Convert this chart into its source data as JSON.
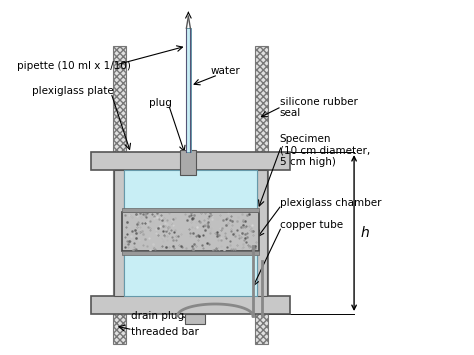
{
  "bg_color": "#ffffff",
  "light_blue": "#c8eef5",
  "plate_gray": "#c8c8c8",
  "bar_fill": "#e0e0e0",
  "specimen_gray": "#c0c0c0",
  "dark_edge": "#555555",
  "seal_gray": "#aaaaaa",
  "font_size": 7.5,
  "labels": {
    "pipette": "pipette (10 ml x 1/10)",
    "water": "water",
    "plexiglass_plate": "plexiglass plate",
    "plug": "plug",
    "silicone": "silicone rubber\nseal",
    "specimen": "Specimen\n(10 cm diameter,\n5 cm high)",
    "plexiglass_chamber": "plexiglass chamber",
    "copper_tube": "copper tube",
    "drain_plug": "drain plug",
    "threaded_bar": "threaded bar",
    "h": "h"
  }
}
